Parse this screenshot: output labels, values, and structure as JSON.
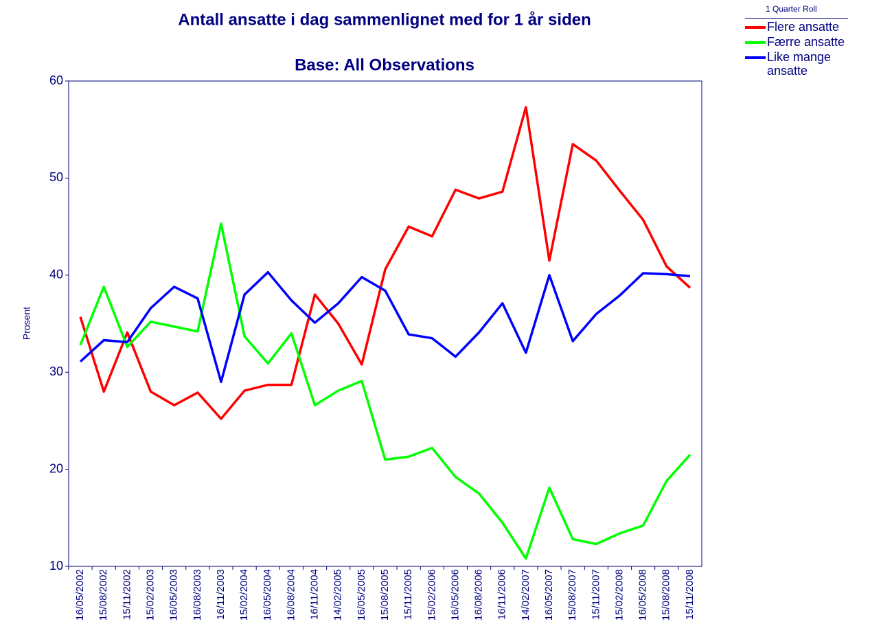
{
  "chart_data": {
    "type": "line",
    "title": "Antall ansatte i dag sammenlignet med for 1 år siden",
    "subtitle": "Base:  All Observations",
    "y_label": "Prosent",
    "legend_title": "1 Quarter Roll",
    "categories": [
      "16/05/2002",
      "15/08/2002",
      "15/11/2002",
      "15/02/2003",
      "16/05/2003",
      "16/08/2003",
      "16/11/2003",
      "15/02/2004",
      "16/05/2004",
      "16/08/2004",
      "16/11/2004",
      "14/02/2005",
      "16/05/2005",
      "15/08/2005",
      "15/11/2005",
      "15/02/2006",
      "16/05/2006",
      "16/08/2006",
      "16/11/2006",
      "14/02/2007",
      "16/05/2007",
      "15/08/2007",
      "15/11/2007",
      "15/02/2008",
      "16/05/2008",
      "15/08/2008",
      "15/11/2008"
    ],
    "series": [
      {
        "name": "Flere ansatte",
        "color": "#ff0000",
        "values": [
          35.7,
          28.0,
          34.1,
          28.0,
          26.6,
          27.9,
          25.2,
          28.1,
          28.7,
          28.7,
          38.0,
          35.0,
          30.8,
          40.6,
          45.0,
          44.0,
          48.8,
          47.9,
          48.6,
          57.3,
          41.5,
          53.5,
          51.8,
          48.7,
          45.7,
          40.9,
          38.7
        ]
      },
      {
        "name": "Færre ansatte",
        "color": "#00ff00",
        "values": [
          32.8,
          38.8,
          32.6,
          35.2,
          34.7,
          34.2,
          45.3,
          33.7,
          30.9,
          34.0,
          26.6,
          28.1,
          29.1,
          21.0,
          21.3,
          22.2,
          19.2,
          17.5,
          14.5,
          10.8,
          18.1,
          12.8,
          12.3,
          13.4,
          14.2,
          18.8,
          21.5
        ]
      },
      {
        "name": "Like mange ansatte",
        "color": "#0000ff",
        "values": [
          31.1,
          33.3,
          33.1,
          36.6,
          38.8,
          37.6,
          29.0,
          38.0,
          40.3,
          37.4,
          35.1,
          37.1,
          39.8,
          38.4,
          33.9,
          33.5,
          31.6,
          34.1,
          37.1,
          32.0,
          40.0,
          33.2,
          36.0,
          37.9,
          40.2,
          40.1,
          39.9
        ]
      }
    ],
    "ylim": [
      10,
      60
    ],
    "yticks": [
      10,
      20,
      30,
      40,
      50,
      60
    ]
  }
}
